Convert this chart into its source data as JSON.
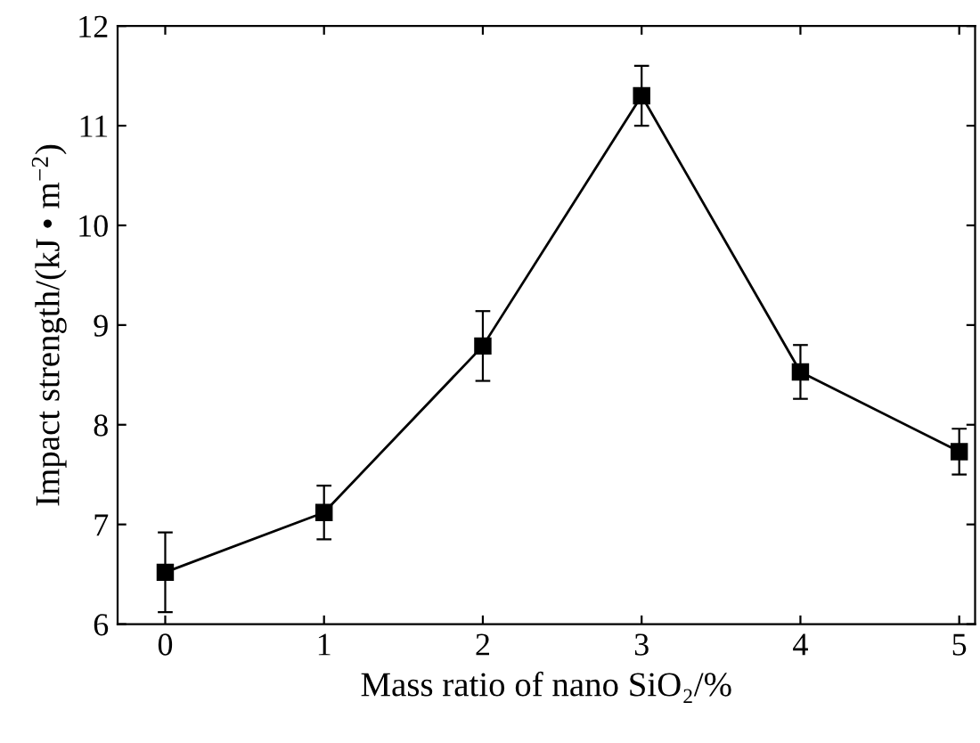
{
  "chart_data": {
    "type": "line",
    "xlabel": "Mass ratio of nano SiO₂/%",
    "ylabel": "Impact strength/(kJ • m$^{−2}$)",
    "x": [
      0,
      1,
      2,
      3,
      4,
      5
    ],
    "series": [
      {
        "color": "#000000",
        "values": [
          6.52,
          7.12,
          8.79,
          11.3,
          8.53,
          7.73
        ],
        "errors": [
          0.4,
          0.27,
          0.35,
          0.3,
          0.27,
          0.23
        ]
      }
    ],
    "xlim": [
      -0.3,
      5.1
    ],
    "xticks": [
      0,
      1,
      2,
      3,
      4,
      5
    ],
    "ylim": [
      6,
      12
    ],
    "yticks": [
      6,
      7,
      8,
      9,
      10,
      11,
      12
    ],
    "marker": "square",
    "line_style": "solid",
    "grid": false,
    "legend": false
  }
}
